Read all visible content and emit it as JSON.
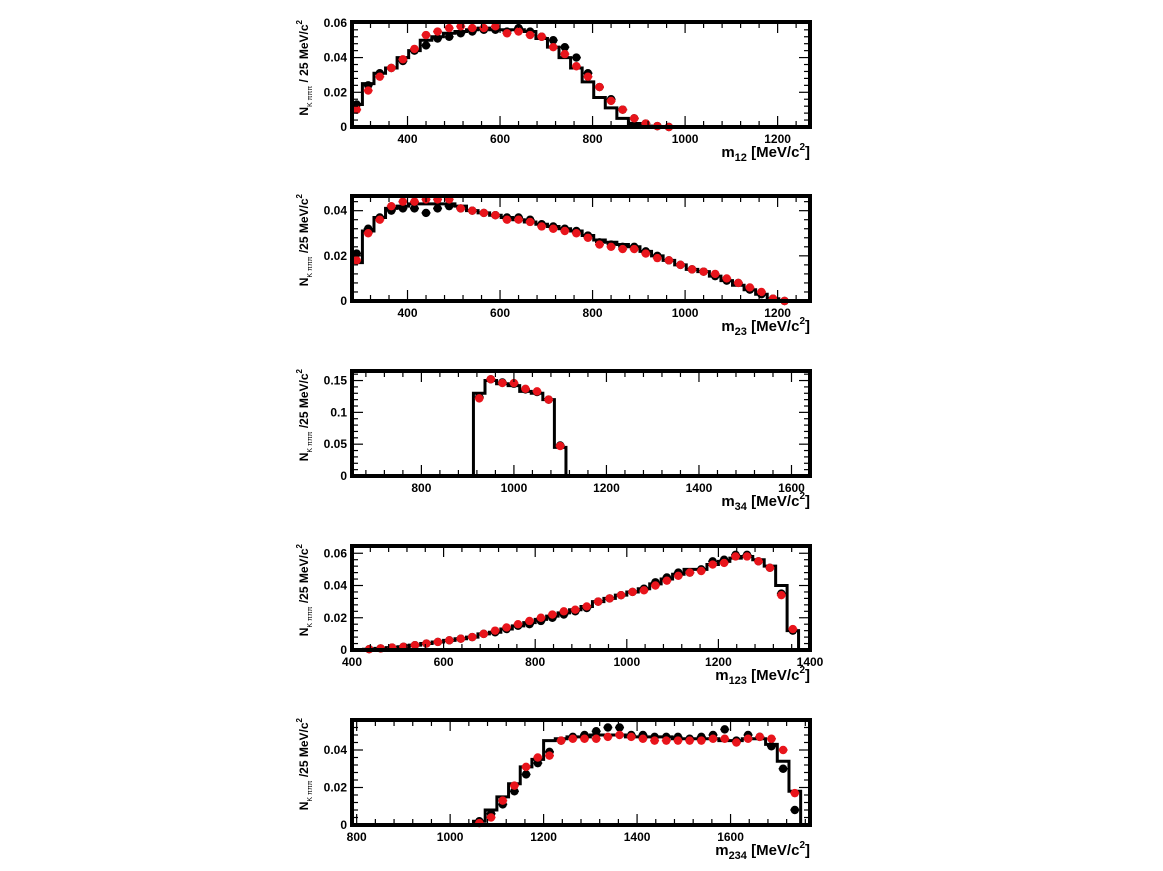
{
  "colors": {
    "histogram": "#000000",
    "black_points": "#000000",
    "red_points": "#e8141b"
  },
  "chart_data": [
    {
      "type": "line",
      "ylabel": {
        "main": "N",
        "sub": "K πππ",
        "suffix": " / 25 MeV/c",
        "sup": "2"
      },
      "xlabel": {
        "main": "m",
        "sub": "12",
        "suffix": " [MeV/c",
        "sup": "2",
        "close": "]"
      },
      "xlim": [
        280,
        1270
      ],
      "ylim": [
        0,
        0.0605
      ],
      "xticks": [
        400,
        600,
        800,
        1000,
        1200
      ],
      "xtick_labels": [
        "400",
        "600",
        "800",
        "1000",
        "1200"
      ],
      "yticks": [
        0,
        0.02,
        0.04,
        0.06
      ],
      "ytick_labels": [
        "0",
        "0.02",
        "0.04",
        "0.06"
      ],
      "grid": false,
      "binwidth": 25,
      "x": [
        290,
        315,
        340,
        365,
        390,
        415,
        440,
        465,
        490,
        515,
        540,
        565,
        590,
        615,
        640,
        665,
        690,
        715,
        740,
        765,
        790,
        815,
        840,
        865,
        890,
        915,
        940,
        965
      ],
      "series": [
        {
          "kind": "hist",
          "values": [
            0.013,
            0.025,
            0.031,
            0.034,
            0.04,
            0.044,
            0.05,
            0.052,
            0.054,
            0.055,
            0.056,
            0.057,
            0.056,
            0.056,
            0.056,
            0.055,
            0.051,
            0.046,
            0.04,
            0.034,
            0.026,
            0.017,
            0.011,
            0.005,
            0.002,
            0.0005,
            0,
            0
          ]
        },
        {
          "kind": "points",
          "values": [
            0.013,
            0.024,
            0.031,
            0.034,
            0.038,
            0.044,
            0.047,
            0.051,
            0.052,
            0.054,
            0.055,
            0.056,
            0.056,
            0.055,
            0.057,
            0.055,
            0.052,
            0.05,
            0.046,
            0.04,
            0.031,
            0.023,
            0.016,
            0.01,
            0.005,
            0.002,
            0.0005,
            0
          ]
        },
        {
          "kind": "points",
          "values": [
            0.01,
            0.021,
            0.029,
            0.034,
            0.039,
            0.045,
            0.053,
            0.055,
            0.057,
            0.058,
            0.057,
            0.057,
            0.058,
            0.054,
            0.055,
            0.053,
            0.052,
            0.046,
            0.042,
            0.035,
            0.029,
            0.023,
            0.015,
            0.01,
            0.005,
            0.002,
            0.0005,
            0
          ]
        }
      ]
    },
    {
      "type": "line",
      "ylabel": {
        "main": "N",
        "sub": "K πππ",
        "suffix": " /25 MeV/c",
        "sup": "2"
      },
      "xlabel": {
        "main": "m",
        "sub": "23",
        "suffix": " [MeV/c",
        "sup": "2",
        "close": "]"
      },
      "xlim": [
        280,
        1270
      ],
      "ylim": [
        0,
        0.0465
      ],
      "xticks": [
        400,
        600,
        800,
        1000,
        1200
      ],
      "xtick_labels": [
        "400",
        "600",
        "800",
        "1000",
        "1200"
      ],
      "yticks": [
        0,
        0.02,
        0.04
      ],
      "ytick_labels": [
        "0",
        "0.02",
        "0.04"
      ],
      "grid": false,
      "binwidth": 25,
      "x": [
        290,
        315,
        340,
        365,
        390,
        415,
        440,
        465,
        490,
        515,
        540,
        565,
        590,
        615,
        640,
        665,
        690,
        715,
        740,
        765,
        790,
        815,
        840,
        865,
        890,
        915,
        940,
        965,
        990,
        1015,
        1040,
        1065,
        1090,
        1115,
        1140,
        1165,
        1190,
        1215
      ],
      "series": [
        {
          "kind": "hist",
          "values": [
            0.017,
            0.031,
            0.037,
            0.041,
            0.042,
            0.043,
            0.043,
            0.043,
            0.043,
            0.042,
            0.04,
            0.039,
            0.038,
            0.037,
            0.036,
            0.035,
            0.034,
            0.033,
            0.032,
            0.031,
            0.029,
            0.027,
            0.026,
            0.025,
            0.024,
            0.022,
            0.02,
            0.018,
            0.016,
            0.014,
            0.013,
            0.011,
            0.009,
            0.007,
            0.005,
            0.003,
            0.001,
            0
          ]
        },
        {
          "kind": "points",
          "values": [
            0.021,
            0.032,
            0.037,
            0.04,
            0.041,
            0.041,
            0.039,
            0.041,
            0.042,
            0.041,
            0.04,
            0.039,
            0.038,
            0.037,
            0.037,
            0.036,
            0.034,
            0.033,
            0.032,
            0.031,
            0.029,
            0.026,
            0.025,
            0.024,
            0.024,
            0.022,
            0.02,
            0.018,
            0.016,
            0.014,
            0.013,
            0.011,
            0.009,
            0.008,
            0.005,
            0.003,
            0.001,
            0
          ]
        },
        {
          "kind": "points",
          "values": [
            0.018,
            0.03,
            0.036,
            0.042,
            0.044,
            0.044,
            0.045,
            0.045,
            0.045,
            0.041,
            0.04,
            0.039,
            0.038,
            0.036,
            0.036,
            0.035,
            0.033,
            0.032,
            0.031,
            0.03,
            0.028,
            0.025,
            0.024,
            0.023,
            0.023,
            0.021,
            0.019,
            0.018,
            0.016,
            0.014,
            0.013,
            0.012,
            0.01,
            0.008,
            0.006,
            0.004,
            0.001,
            0
          ]
        }
      ]
    },
    {
      "type": "line",
      "ylabel": {
        "main": "N",
        "sub": "K πππ",
        "suffix": " /25 MeV/c",
        "sup": "2"
      },
      "xlabel": {
        "main": "m",
        "sub": "34",
        "suffix": " [MeV/c",
        "sup": "2",
        "close": "]"
      },
      "xlim": [
        650,
        1640
      ],
      "ylim": [
        0,
        0.165
      ],
      "xticks": [
        800,
        1000,
        1200,
        1400,
        1600
      ],
      "xtick_labels": [
        "800",
        "1000",
        "1200",
        "1400",
        "1600"
      ],
      "yticks": [
        0,
        0.05,
        0.1,
        0.15
      ],
      "ytick_labels": [
        "0",
        "0.05",
        "0.1",
        "0.15"
      ],
      "grid": false,
      "binwidth": 25,
      "x": [
        925,
        950,
        975,
        1000,
        1025,
        1050,
        1075,
        1100
      ],
      "series": [
        {
          "kind": "hist",
          "values": [
            0.13,
            0.15,
            0.145,
            0.142,
            0.133,
            0.13,
            0.12,
            0.045
          ]
        },
        {
          "kind": "points",
          "values": [
            0.124,
            0.152,
            0.147,
            0.145,
            0.136,
            0.132,
            0.12,
            0.048
          ]
        },
        {
          "kind": "points",
          "values": [
            0.122,
            0.152,
            0.146,
            0.146,
            0.137,
            0.133,
            0.12,
            0.047
          ]
        }
      ]
    },
    {
      "type": "line",
      "ylabel": {
        "main": "N",
        "sub": "K πππ",
        "suffix": " /25 MeV/c",
        "sup": "2"
      },
      "xlabel": {
        "main": "m",
        "sub": "123",
        "suffix": " [MeV/c",
        "sup": "2",
        "close": "]"
      },
      "xlim": [
        400,
        1400
      ],
      "ylim": [
        0,
        0.0645
      ],
      "xticks": [
        400,
        600,
        800,
        1000,
        1200,
        1400
      ],
      "xtick_labels": [
        "400",
        "600",
        "800",
        "1000",
        "1200",
        "1400"
      ],
      "yticks": [
        0,
        0.02,
        0.04,
        0.06
      ],
      "ytick_labels": [
        "0",
        "0.02",
        "0.04",
        "0.06"
      ],
      "grid": false,
      "binwidth": 25,
      "x": [
        437.5,
        462.5,
        487.5,
        512.5,
        537.5,
        562.5,
        587.5,
        612.5,
        637.5,
        662.5,
        687.5,
        712.5,
        737.5,
        762.5,
        787.5,
        812.5,
        837.5,
        862.5,
        887.5,
        912.5,
        937.5,
        962.5,
        987.5,
        1012.5,
        1037.5,
        1062.5,
        1087.5,
        1112.5,
        1137.5,
        1162.5,
        1187.5,
        1212.5,
        1237.5,
        1262.5,
        1287.5,
        1312.5,
        1337.5,
        1362.5
      ],
      "series": [
        {
          "kind": "hist",
          "values": [
            0.0005,
            0.001,
            0.0015,
            0.002,
            0.003,
            0.004,
            0.005,
            0.006,
            0.007,
            0.008,
            0.01,
            0.011,
            0.013,
            0.015,
            0.017,
            0.019,
            0.021,
            0.023,
            0.025,
            0.027,
            0.03,
            0.032,
            0.034,
            0.036,
            0.038,
            0.041,
            0.044,
            0.047,
            0.05,
            0.05,
            0.053,
            0.055,
            0.057,
            0.058,
            0.056,
            0.052,
            0.04,
            0.012
          ]
        },
        {
          "kind": "points",
          "values": [
            0.0005,
            0.001,
            0.0015,
            0.002,
            0.003,
            0.004,
            0.005,
            0.006,
            0.007,
            0.008,
            0.01,
            0.011,
            0.013,
            0.015,
            0.016,
            0.018,
            0.02,
            0.022,
            0.024,
            0.026,
            0.03,
            0.032,
            0.034,
            0.036,
            0.038,
            0.042,
            0.045,
            0.048,
            0.048,
            0.05,
            0.055,
            0.056,
            0.059,
            0.059,
            0.055,
            0.051,
            0.035,
            0.012
          ]
        },
        {
          "kind": "points",
          "values": [
            0.0005,
            0.001,
            0.0015,
            0.002,
            0.003,
            0.004,
            0.005,
            0.006,
            0.007,
            0.008,
            0.01,
            0.012,
            0.014,
            0.016,
            0.018,
            0.02,
            0.022,
            0.024,
            0.025,
            0.027,
            0.03,
            0.032,
            0.034,
            0.036,
            0.037,
            0.04,
            0.043,
            0.046,
            0.048,
            0.049,
            0.053,
            0.054,
            0.058,
            0.058,
            0.055,
            0.051,
            0.034,
            0.013
          ]
        }
      ]
    },
    {
      "type": "line",
      "ylabel": {
        "main": "N",
        "sub": "K πππ",
        "suffix": " /25 MeV/c",
        "sup": "2"
      },
      "xlabel": {
        "main": "m",
        "sub": "234",
        "suffix": " [MeV/c",
        "sup": "2",
        "close": "]"
      },
      "xlim": [
        790,
        1770
      ],
      "ylim": [
        0,
        0.056
      ],
      "xticks": [
        800,
        1000,
        1200,
        1400,
        1600
      ],
      "xtick_labels": [
        "800",
        "1000",
        "1200",
        "1400",
        "1600"
      ],
      "yticks": [
        0,
        0.02,
        0.04
      ],
      "ytick_labels": [
        "0",
        "0.02",
        "0.04"
      ],
      "grid": false,
      "binwidth": 25,
      "x": [
        1062.5,
        1087.5,
        1112.5,
        1137.5,
        1162.5,
        1187.5,
        1212.5,
        1237.5,
        1262.5,
        1287.5,
        1312.5,
        1337.5,
        1362.5,
        1387.5,
        1412.5,
        1437.5,
        1462.5,
        1487.5,
        1512.5,
        1537.5,
        1562.5,
        1587.5,
        1612.5,
        1637.5,
        1662.5,
        1687.5,
        1712.5,
        1737.5
      ],
      "series": [
        {
          "kind": "hist",
          "values": [
            0.002,
            0.008,
            0.015,
            0.022,
            0.031,
            0.035,
            0.045,
            0.046,
            0.047,
            0.047,
            0.048,
            0.048,
            0.048,
            0.047,
            0.047,
            0.047,
            0.047,
            0.046,
            0.046,
            0.046,
            0.046,
            0.045,
            0.045,
            0.046,
            0.046,
            0.043,
            0.034,
            0.018
          ]
        },
        {
          "kind": "points",
          "values": [
            0.002,
            0.006,
            0.011,
            0.018,
            0.027,
            0.033,
            0.039,
            0.045,
            0.047,
            0.048,
            0.05,
            0.052,
            0.052,
            0.048,
            0.048,
            0.047,
            0.047,
            0.047,
            0.046,
            0.047,
            0.048,
            0.051,
            0.045,
            0.048,
            0.047,
            0.042,
            0.03,
            0.008
          ]
        },
        {
          "kind": "points",
          "values": [
            0.001,
            0.004,
            0.013,
            0.021,
            0.031,
            0.036,
            0.037,
            0.045,
            0.046,
            0.046,
            0.046,
            0.047,
            0.048,
            0.047,
            0.046,
            0.045,
            0.045,
            0.045,
            0.045,
            0.045,
            0.046,
            0.046,
            0.044,
            0.046,
            0.047,
            0.046,
            0.04,
            0.017
          ]
        }
      ]
    }
  ]
}
